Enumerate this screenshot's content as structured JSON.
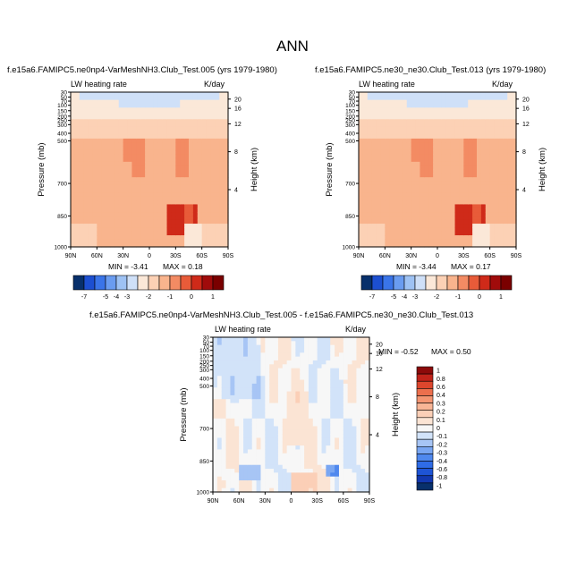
{
  "page_title": "ANN",
  "colors": {
    "abs_levels": [
      "#08306b",
      "#1c4fd1",
      "#3a74e8",
      "#6a9cf0",
      "#9ec2f4",
      "#cfe0f8",
      "#fbe8d8",
      "#fcd1b5",
      "#f9b48d",
      "#f38b63",
      "#e85b39",
      "#cf2a19",
      "#a00b0b",
      "#7a0000"
    ],
    "diff_levels": [
      "#08306b",
      "#1238b0",
      "#1e54d6",
      "#2f6ce6",
      "#4f88ee",
      "#79a6f2",
      "#a7c5f5",
      "#d2e3f9",
      "#f7f7f7",
      "#fbe4d4",
      "#fbcfb7",
      "#f8b596",
      "#f49572",
      "#ec6f4d",
      "#dc462d",
      "#c0231a",
      "#8c0a0a"
    ]
  },
  "chart_data": [
    {
      "type": "heatmap",
      "title": "f.e15a6.FAMIPC5.ne0np4-VarMeshNH3.Club_Test.005 (yrs 1979-1980)",
      "variable": "LW heating rate",
      "units": "K/day",
      "ylabel": "Pressure (mb)",
      "y2label": "Height (km)",
      "xticks": [
        "90N",
        "60N",
        "30N",
        "0",
        "30S",
        "60S",
        "90S"
      ],
      "yticks": [
        "1000",
        "850",
        "700",
        "500",
        "400",
        "300",
        "250",
        "200",
        "150",
        "100",
        "70",
        "50",
        "30"
      ],
      "y2ticks": [
        "4",
        "8",
        "12",
        "16",
        "20"
      ],
      "min_text": "MIN = -3.41",
      "max_text": "MAX =  0.18",
      "colorbar_labels": [
        "-7",
        "-5",
        "-4",
        "-3",
        "-2",
        "-1",
        "0",
        "1"
      ],
      "ylim": [
        1000,
        30
      ]
    },
    {
      "type": "heatmap",
      "title": "f.e15a6.FAMIPC5.ne30_ne30.Club_Test.013 (yrs 1979-1980)",
      "variable": "LW heating rate",
      "units": "K/day",
      "ylabel": "Pressure (mb)",
      "y2label": "Height (km)",
      "xticks": [
        "90N",
        "60N",
        "30N",
        "0",
        "30S",
        "60S",
        "90S"
      ],
      "yticks": [
        "1000",
        "850",
        "700",
        "500",
        "400",
        "300",
        "250",
        "200",
        "150",
        "100",
        "70",
        "50",
        "30"
      ],
      "y2ticks": [
        "4",
        "8",
        "12",
        "16",
        "20"
      ],
      "min_text": "MIN = -3.44",
      "max_text": "MAX =  0.17",
      "colorbar_labels": [
        "-7",
        "-5",
        "-4",
        "-3",
        "-2",
        "-1",
        "0",
        "1"
      ],
      "ylim": [
        1000,
        30
      ]
    },
    {
      "type": "heatmap",
      "title": "f.e15a6.FAMIPC5.ne0np4-VarMeshNH3.Club_Test.005 - f.e15a6.FAMIPC5.ne30_ne30.Club_Test.013",
      "variable": "LW heating rate",
      "units": "K/day",
      "ylabel": "Pressure (mb)",
      "y2label": "Height (km)",
      "xticks": [
        "90N",
        "60N",
        "30N",
        "0",
        "30S",
        "60S",
        "90S"
      ],
      "yticks": [
        "1000",
        "850",
        "700",
        "500",
        "400",
        "300",
        "250",
        "200",
        "150",
        "100",
        "70",
        "50",
        "30"
      ],
      "y2ticks": [
        "4",
        "8",
        "12",
        "16",
        "20"
      ],
      "min_text": "MIN = -0.52",
      "max_text": "MAX =  0.50",
      "colorbar_labels": [
        "1",
        "0.8",
        "0.6",
        "0.4",
        "0.3",
        "0.2",
        "0.1",
        "0",
        "-0.1",
        "-0.2",
        "-0.3",
        "-0.4",
        "-0.6",
        "-0.8",
        "-1"
      ],
      "ylim": [
        1000,
        30
      ]
    }
  ]
}
